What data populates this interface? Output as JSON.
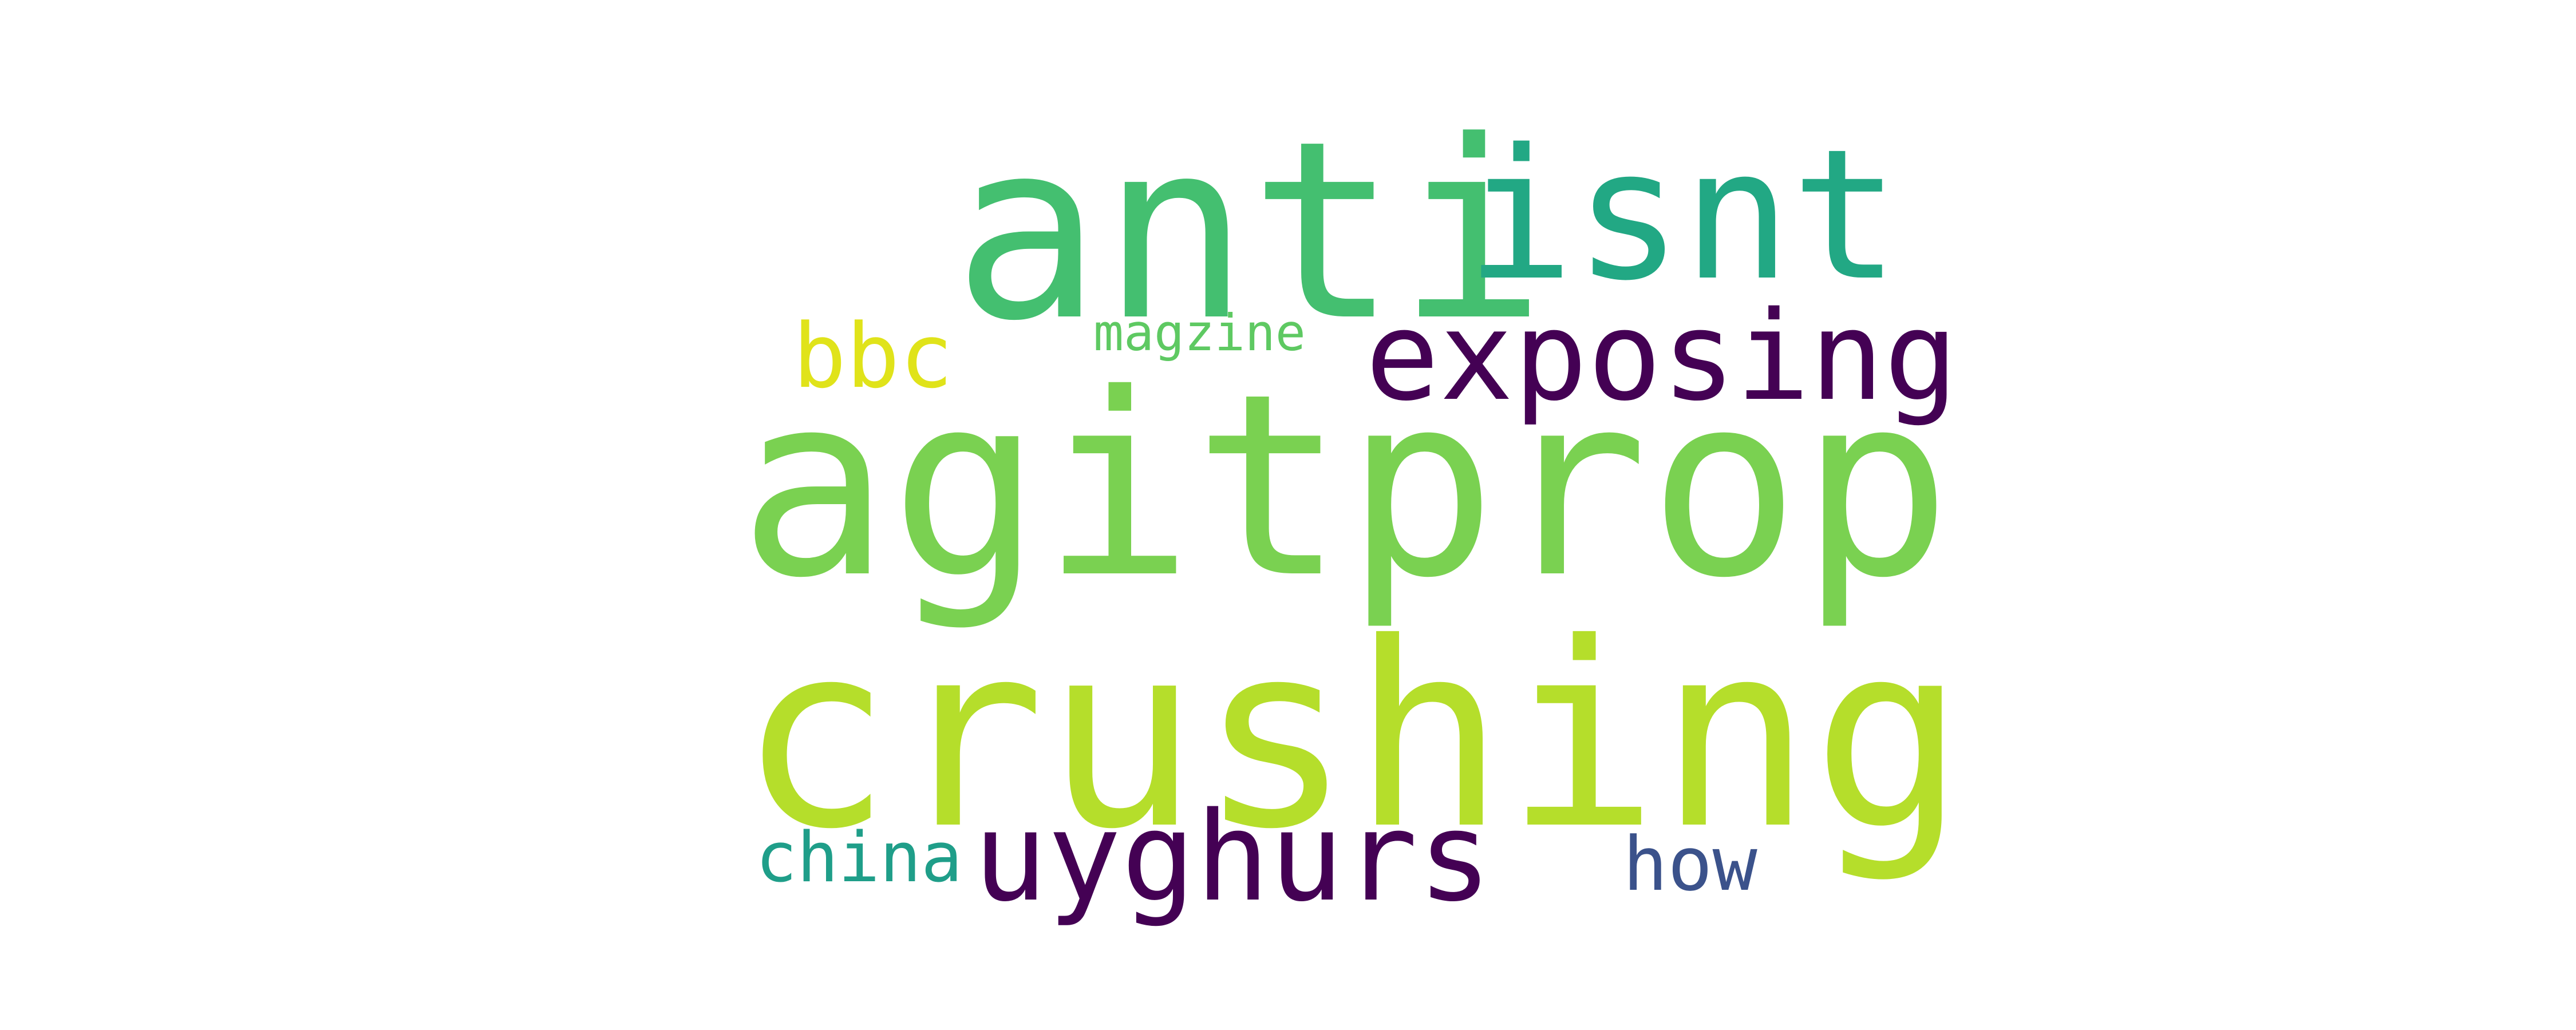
{
  "words": {
    "agitprop": {
      "text": "agitprop",
      "color": "#7ad151"
    },
    "crushing": {
      "text": "crushing",
      "color": "#b5de2b"
    },
    "anti": {
      "text": "anti",
      "color": "#44bf70"
    },
    "isnt": {
      "text": "isnt",
      "color": "#22a884"
    },
    "exposing": {
      "text": "exposing",
      "color": "#440154"
    },
    "uyghurs": {
      "text": "uyghurs",
      "color": "#440154"
    },
    "bbc": {
      "text": "bbc",
      "color": "#e0e31a"
    },
    "magzine": {
      "text": "magzine",
      "color": "#5ec962"
    },
    "china": {
      "text": "china",
      "color": "#1f9e89"
    },
    "how": {
      "text": "how",
      "color": "#3b528b"
    }
  }
}
